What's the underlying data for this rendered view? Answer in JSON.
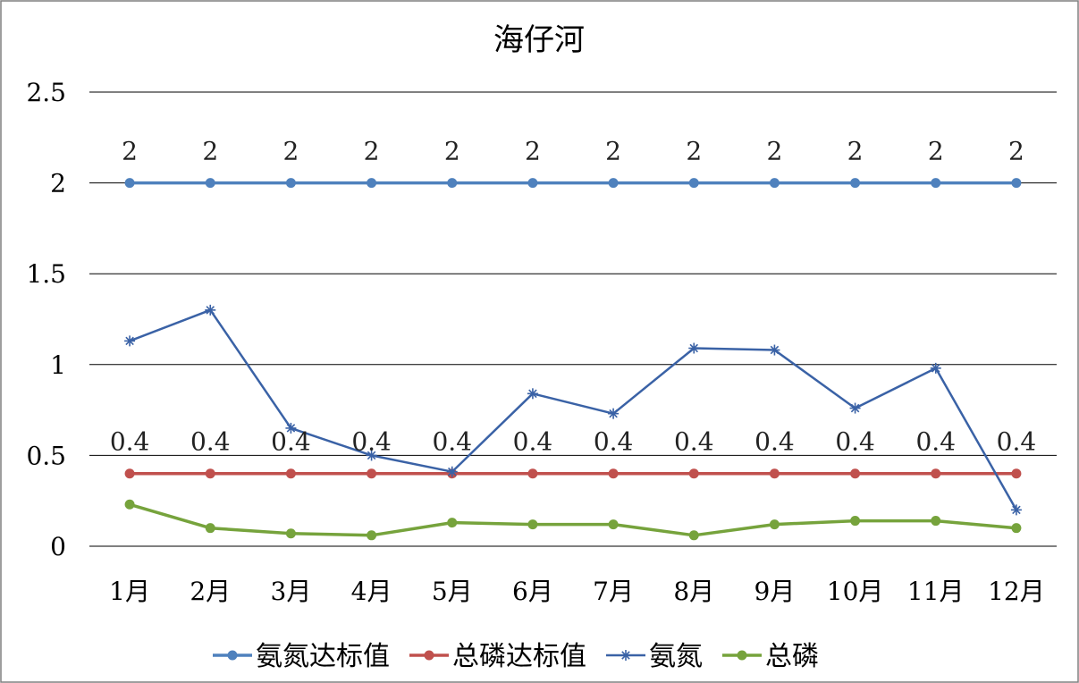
{
  "chart_data": {
    "type": "line",
    "title": "海仔河",
    "categories": [
      "1月",
      "2月",
      "3月",
      "4月",
      "5月",
      "6月",
      "7月",
      "8月",
      "9月",
      "10月",
      "11月",
      "12月"
    ],
    "y_ticks": [
      "0",
      "0.5",
      "1",
      "1.5",
      "2",
      "2.5"
    ],
    "ylim": [
      0,
      2.5
    ],
    "grid": true,
    "legend_position": "bottom",
    "series": [
      {
        "name": "氨氮达标值",
        "color": "#4F81BD",
        "marker": "circle",
        "values": [
          2,
          2,
          2,
          2,
          2,
          2,
          2,
          2,
          2,
          2,
          2,
          2
        ],
        "data_labels": [
          "2",
          "2",
          "2",
          "2",
          "2",
          "2",
          "2",
          "2",
          "2",
          "2",
          "2",
          "2"
        ]
      },
      {
        "name": "总磷达标值",
        "color": "#C0504D",
        "marker": "circle",
        "values": [
          0.4,
          0.4,
          0.4,
          0.4,
          0.4,
          0.4,
          0.4,
          0.4,
          0.4,
          0.4,
          0.4,
          0.4
        ],
        "data_labels": [
          "0.4",
          "0.4",
          "0.4",
          "0.4",
          "0.4",
          "0.4",
          "0.4",
          "0.4",
          "0.4",
          "0.4",
          "0.4",
          "0.4"
        ]
      },
      {
        "name": "氨氮",
        "color": "#3A62A6",
        "marker": "star",
        "values": [
          1.13,
          1.3,
          0.65,
          0.5,
          0.41,
          0.84,
          0.73,
          1.09,
          1.08,
          0.76,
          0.98,
          0.2
        ]
      },
      {
        "name": "总磷",
        "color": "#76A33C",
        "marker": "circle",
        "values": [
          0.23,
          0.1,
          0.07,
          0.06,
          0.13,
          0.12,
          0.12,
          0.06,
          0.12,
          0.14,
          0.14,
          0.1
        ]
      }
    ]
  }
}
